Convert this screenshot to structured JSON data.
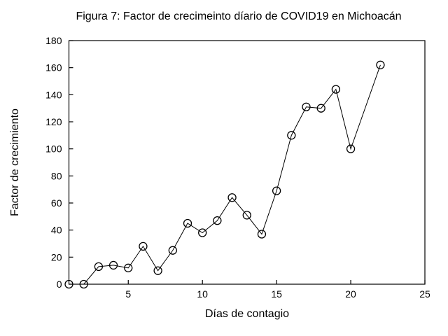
{
  "figure": {
    "title": "Figura 7: Factor de crecimeinto díario de COVID19 en Michoacán",
    "xlabel": "Días de contagio",
    "ylabel": "Factor de crecimiento"
  },
  "chart_data": {
    "type": "line",
    "title": "Figura 7: Factor de crecimeinto díario de COVID19 en Michoacán",
    "xlabel": "Días de contagio",
    "ylabel": "Factor de crecimiento",
    "x": [
      1,
      2,
      3,
      4,
      5,
      6,
      7,
      8,
      9,
      10,
      11,
      12,
      13,
      14,
      15,
      16,
      17,
      18,
      19,
      20,
      22
    ],
    "y": [
      0,
      0,
      13,
      14,
      12,
      28,
      10,
      25,
      45,
      38,
      47,
      64,
      51,
      37,
      69,
      110,
      131,
      130,
      144,
      100,
      162
    ],
    "xlim": [
      1,
      25
    ],
    "ylim": [
      0,
      180
    ],
    "xticks": [
      5,
      10,
      15,
      20,
      25
    ],
    "yticks": [
      0,
      20,
      40,
      60,
      80,
      100,
      120,
      140,
      160,
      180
    ],
    "grid": false,
    "legend_position": "none",
    "marker": "open-circle",
    "colors": {
      "line": "#000000",
      "marker_stroke": "#000000",
      "marker_fill": "none",
      "background": "#ffffff",
      "text": "#000000",
      "box": "#000000"
    }
  }
}
